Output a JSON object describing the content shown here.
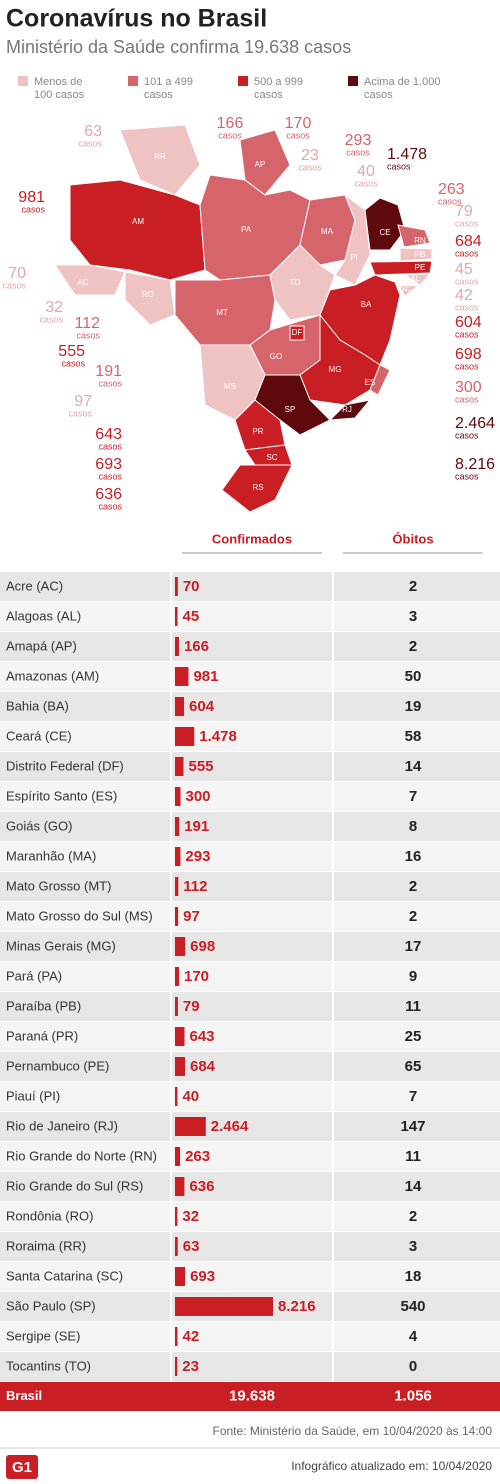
{
  "header": {
    "title": "Coronavírus no Brasil",
    "subtitle": "Ministério da Saúde confirma 19.638 casos"
  },
  "legend": [
    {
      "lines": [
        "Menos de",
        "100 casos"
      ],
      "color": "#f0c3c3"
    },
    {
      "lines": [
        "101 a 499",
        "casos"
      ],
      "color": "#d6646b"
    },
    {
      "lines": [
        "500 a 999",
        "casos"
      ],
      "color": "#c81e24"
    },
    {
      "lines": [
        "Acima de 1.000",
        "casos"
      ],
      "color": "#5e0a0d"
    }
  ],
  "map": {
    "unit": "casos",
    "states": [
      {
        "abbr": "RR",
        "color": "#f0c3c3"
      },
      {
        "abbr": "AP",
        "color": "#d6646b"
      },
      {
        "abbr": "AM",
        "color": "#c81e24"
      },
      {
        "abbr": "AC",
        "color": "#f0c3c3"
      },
      {
        "abbr": "RO",
        "color": "#f0c3c3"
      },
      {
        "abbr": "PA",
        "color": "#d6646b"
      },
      {
        "abbr": "MT",
        "color": "#d6646b"
      },
      {
        "abbr": "MA",
        "color": "#d6646b"
      },
      {
        "abbr": "PI",
        "color": "#f0c3c3"
      },
      {
        "abbr": "CE",
        "color": "#5e0a0d"
      },
      {
        "abbr": "RN",
        "color": "#d6646b"
      },
      {
        "abbr": "PB",
        "color": "#f0c3c3"
      },
      {
        "abbr": "PE",
        "color": "#c81e24"
      },
      {
        "abbr": "AL",
        "color": "#f0c3c3"
      },
      {
        "abbr": "SE",
        "color": "#f0c3c3"
      },
      {
        "abbr": "TO",
        "color": "#f0c3c3"
      },
      {
        "abbr": "BA",
        "color": "#c81e24"
      },
      {
        "abbr": "GO",
        "color": "#d6646b"
      },
      {
        "abbr": "DF",
        "color": "#c81e24"
      },
      {
        "abbr": "MG",
        "color": "#c81e24"
      },
      {
        "abbr": "ES",
        "color": "#d6646b"
      },
      {
        "abbr": "MS",
        "color": "#f0c3c3"
      },
      {
        "abbr": "SP",
        "color": "#5e0a0d"
      },
      {
        "abbr": "RJ",
        "color": "#5e0a0d"
      },
      {
        "abbr": "PR",
        "color": "#c81e24"
      },
      {
        "abbr": "SC",
        "color": "#c81e24"
      },
      {
        "abbr": "RS",
        "color": "#c81e24"
      }
    ]
  },
  "table": {
    "headers": [
      "Confirmados",
      "Óbitos"
    ],
    "bar_color": "#c81e24",
    "rows": [
      {
        "state": "Acre (AC)",
        "confirmed": 70,
        "deaths": 2
      },
      {
        "state": "Alagoas (AL)",
        "confirmed": 45,
        "deaths": 3
      },
      {
        "state": "Amapá (AP)",
        "confirmed": 166,
        "deaths": 2
      },
      {
        "state": "Amazonas (AM)",
        "confirmed": 981,
        "deaths": 50
      },
      {
        "state": "Bahia (BA)",
        "confirmed": 604,
        "deaths": 19
      },
      {
        "state": "Ceará (CE)",
        "confirmed": {
          "value": 1478,
          "label": "1.478"
        },
        "deaths": 58
      },
      {
        "state": "Distrito Federal (DF)",
        "confirmed": 555,
        "deaths": 14
      },
      {
        "state": "Espírito Santo (ES)",
        "confirmed": 300,
        "deaths": 7
      },
      {
        "state": "Goiás (GO)",
        "confirmed": 191,
        "deaths": 8
      },
      {
        "state": "Maranhão (MA)",
        "confirmed": 293,
        "deaths": 16
      },
      {
        "state": "Mato Grosso (MT)",
        "confirmed": 112,
        "deaths": 2
      },
      {
        "state": "Mato Grosso do Sul (MS)",
        "confirmed": 97,
        "deaths": 2
      },
      {
        "state": "Minas Gerais (MG)",
        "confirmed": 698,
        "deaths": 17
      },
      {
        "state": "Pará (PA)",
        "confirmed": 170,
        "deaths": 9
      },
      {
        "state": "Paraíba (PB)",
        "confirmed": 79,
        "deaths": 11
      },
      {
        "state": "Paraná (PR)",
        "confirmed": 643,
        "deaths": 25
      },
      {
        "state": "Pernambuco (PE)",
        "confirmed": 684,
        "deaths": 65
      },
      {
        "state": "Piauí (PI)",
        "confirmed": 40,
        "deaths": 7
      },
      {
        "state": "Rio de Janeiro (RJ)",
        "confirmed": {
          "value": 2464,
          "label": "2.464"
        },
        "deaths": 147
      },
      {
        "state": "Rio Grande do Norte (RN)",
        "confirmed": 263,
        "deaths": 11
      },
      {
        "state": "Rio Grande do Sul (RS)",
        "confirmed": 636,
        "deaths": 14
      },
      {
        "state": "Rondônia (RO)",
        "confirmed": 32,
        "deaths": 2
      },
      {
        "state": "Roraima (RR)",
        "confirmed": 63,
        "deaths": 3
      },
      {
        "state": "Santa Catarina (SC)",
        "confirmed": 693,
        "deaths": 18
      },
      {
        "state": "São Paulo (SP)",
        "confirmed": {
          "value": 8216,
          "label": "8.216"
        },
        "deaths": 540
      },
      {
        "state": "Sergipe (SE)",
        "confirmed": 42,
        "deaths": 4
      },
      {
        "state": "Tocantins (TO)",
        "confirmed": 23,
        "deaths": 0
      }
    ],
    "total": {
      "state": "Brasil",
      "confirmed": {
        "value": 19638,
        "label": "19.638"
      },
      "deaths": {
        "value": 1056,
        "label": "1.056"
      }
    }
  },
  "footer": {
    "source": "Fonte: Ministério da Saúde, em 10/04/2020 às 14:00",
    "logo": "G1",
    "updated": "Infográfico atualizado em: 10/04/2020"
  }
}
